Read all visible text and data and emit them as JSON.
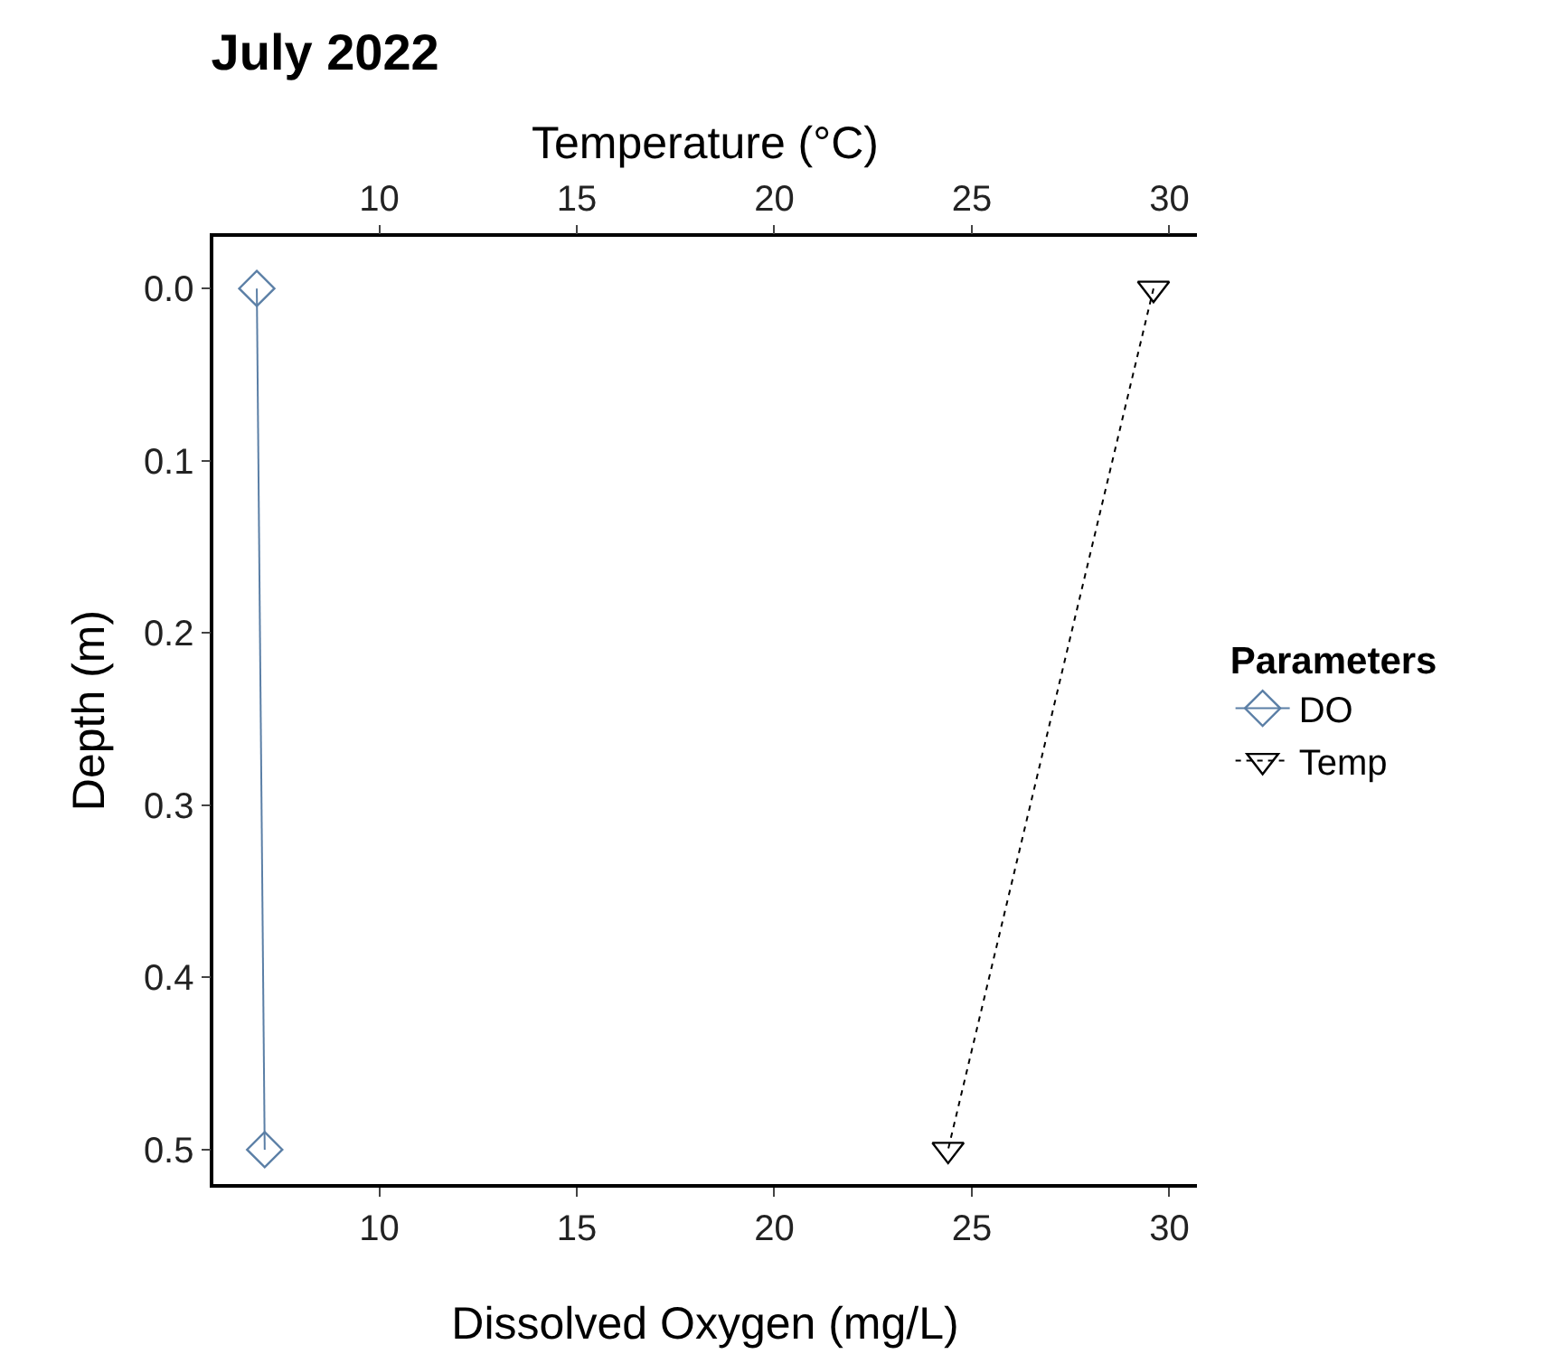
{
  "chart_data": {
    "type": "line",
    "title": "July 2022",
    "xlabel": "Dissolved Oxygen (mg/L)",
    "x2label": "Temperature (°C)",
    "ylabel": "Depth (m)",
    "legend_title": "Parameters",
    "series": [
      {
        "name": "DO",
        "color": "#5b7fa6",
        "x": [
          6.9,
          7.1
        ],
        "values": [
          0,
          0.5
        ],
        "marker": "diamond",
        "line_style": "solid"
      },
      {
        "name": "Temp",
        "color": "#000000",
        "x": [
          29.6,
          24.4
        ],
        "values": [
          0,
          0.5
        ],
        "marker": "triangle",
        "line_style": "dotted",
        "axis": "x2"
      }
    ],
    "xlim": [
      5.8,
      30.7
    ],
    "xticks": [
      10,
      15,
      20,
      25,
      30
    ],
    "x2lim": [
      5.8,
      30.7
    ],
    "x2ticks": [
      10,
      15,
      20,
      25,
      30
    ],
    "ylim": [
      0.52,
      -0.03
    ],
    "yticks": [
      {
        "value": 0,
        "label": "0.0"
      },
      0.1,
      0.2,
      0.3,
      0.4,
      0.5
    ],
    "grid": false,
    "legend": "right"
  }
}
